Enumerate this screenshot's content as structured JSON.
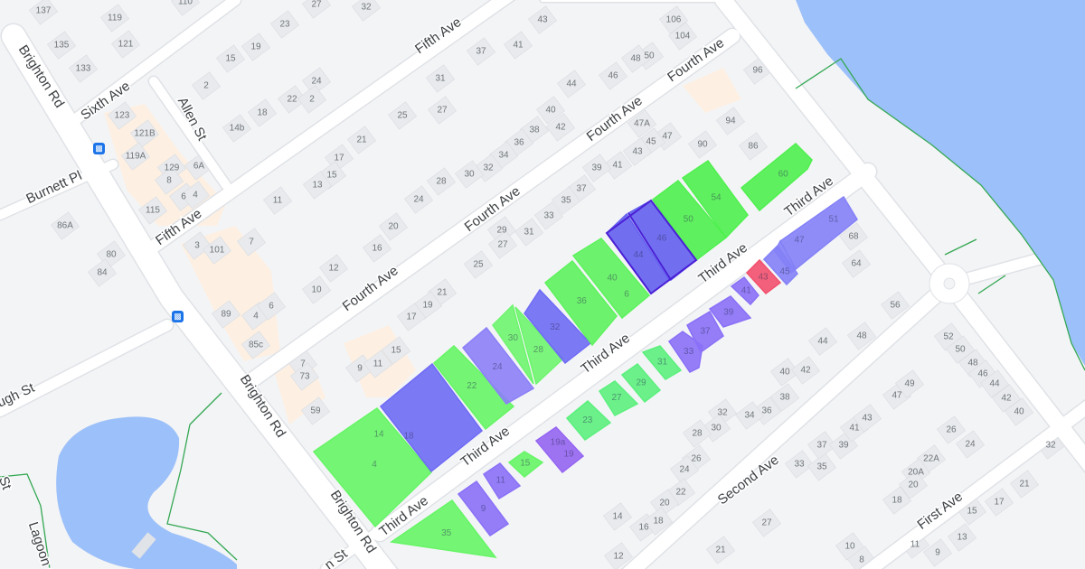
{
  "map": {
    "colors": {
      "water": "#9cc0f9",
      "road": "#ffffff",
      "road_edge": "#dfe2e6",
      "land": "#f3f4f6",
      "building": "#e8eaed",
      "commercial": "#fdf0e3",
      "boundary": "#34a853"
    },
    "streets": [
      "Brighton Rd",
      "Brighton Rd",
      "Brighton Rd",
      "Sixth Ave",
      "Allen St",
      "Fifth Ave",
      "Fifth Ave",
      "Fourth Ave",
      "Fourth Ave",
      "Fourth Ave",
      "Fourth Ave",
      "Third Ave",
      "Third Ave",
      "Third Ave",
      "Third Ave",
      "Third Ave",
      "Burnett Pl",
      "ough St",
      "Second Ave",
      "First Ave",
      "Lagoon s",
      "St",
      "n St"
    ],
    "house_numbers": [
      "137",
      "119",
      "135",
      "121",
      "133",
      "110",
      "27",
      "32",
      "23",
      "19",
      "15",
      "2",
      "24",
      "22",
      "2",
      "18",
      "14b",
      "43",
      "106",
      "104",
      "41",
      "37",
      "31",
      "50",
      "48",
      "46",
      "44",
      "40",
      "42",
      "38",
      "36",
      "34",
      "32",
      "30",
      "27",
      "25",
      "21",
      "17",
      "15",
      "13",
      "28",
      "24",
      "20",
      "16",
      "12",
      "10",
      "11",
      "47A",
      "47",
      "45",
      "43",
      "41",
      "39",
      "37",
      "35",
      "33",
      "31",
      "29",
      "27",
      "25",
      "21",
      "19",
      "17",
      "9",
      "11",
      "15",
      "7",
      "73",
      "59",
      "90",
      "86",
      "94",
      "96",
      "68",
      "64",
      "56",
      "48",
      "44",
      "40",
      "42",
      "38",
      "36",
      "34",
      "32",
      "30",
      "28",
      "26",
      "24",
      "22",
      "20",
      "14",
      "16",
      "18",
      "12",
      "21",
      "27",
      "33",
      "35",
      "37",
      "39",
      "41",
      "43",
      "47",
      "49",
      "52",
      "50",
      "48",
      "46",
      "44",
      "42",
      "40",
      "26",
      "24",
      "22A",
      "20A",
      "20",
      "18",
      "17",
      "15",
      "21",
      "32",
      "11",
      "13",
      "10",
      "8",
      "9",
      "123",
      "121B",
      "119A",
      "129",
      "6A",
      "8",
      "6",
      "4",
      "115",
      "86A",
      "80",
      "84",
      "3",
      "101",
      "7",
      "89",
      "4",
      "6",
      "85c"
    ],
    "parcels": [
      {
        "label": "4",
        "color": "#66f566"
      },
      {
        "label": "18",
        "sublabel": "14",
        "color": "#6f6bf5"
      },
      {
        "label": "22",
        "color": "#66f566"
      },
      {
        "label": "24",
        "color": "#8c80f7"
      },
      {
        "label": "30",
        "color": "#6ef56e"
      },
      {
        "label": "28",
        "color": "#6ef56e"
      },
      {
        "label": "32",
        "color": "#6f6bf5"
      },
      {
        "label": "36",
        "color": "#5ef25e"
      },
      {
        "label": "40",
        "sublabel": "6",
        "color": "#5ef25e"
      },
      {
        "label": "44",
        "color": "#6360f0"
      },
      {
        "label": "46",
        "color": "#6360f0"
      },
      {
        "label": "50",
        "color": "#4ff04f"
      },
      {
        "label": "54",
        "color": "#4ff04f"
      },
      {
        "label": "60",
        "color": "#4ff04f"
      },
      {
        "label": "51",
        "color": "#8481f7"
      },
      {
        "label": "47",
        "color": "#8481f7"
      },
      {
        "label": "45",
        "color": "#8481f7"
      },
      {
        "label": "43",
        "color": "#f2506e"
      },
      {
        "label": "41",
        "color": "#8a70f7"
      },
      {
        "label": "39",
        "color": "#8a70f7"
      },
      {
        "label": "37",
        "color": "#8a70f7"
      },
      {
        "label": "33",
        "color": "#8a70f7"
      },
      {
        "label": "31",
        "color": "#5cf07e"
      },
      {
        "label": "29",
        "color": "#5cf07e"
      },
      {
        "label": "27",
        "color": "#5cf07e"
      },
      {
        "label": "23",
        "color": "#5cf07e"
      },
      {
        "label": "19a",
        "sublabel": "19",
        "color": "#9565f2"
      },
      {
        "label": "15",
        "color": "#66f566"
      },
      {
        "label": "11",
        "color": "#8a70f7"
      },
      {
        "label": "9",
        "color": "#8a70f7"
      },
      {
        "label": "35",
        "color": "#66f566"
      }
    ],
    "icons": [
      "bus-stop-icon",
      "bus-stop-icon"
    ]
  }
}
